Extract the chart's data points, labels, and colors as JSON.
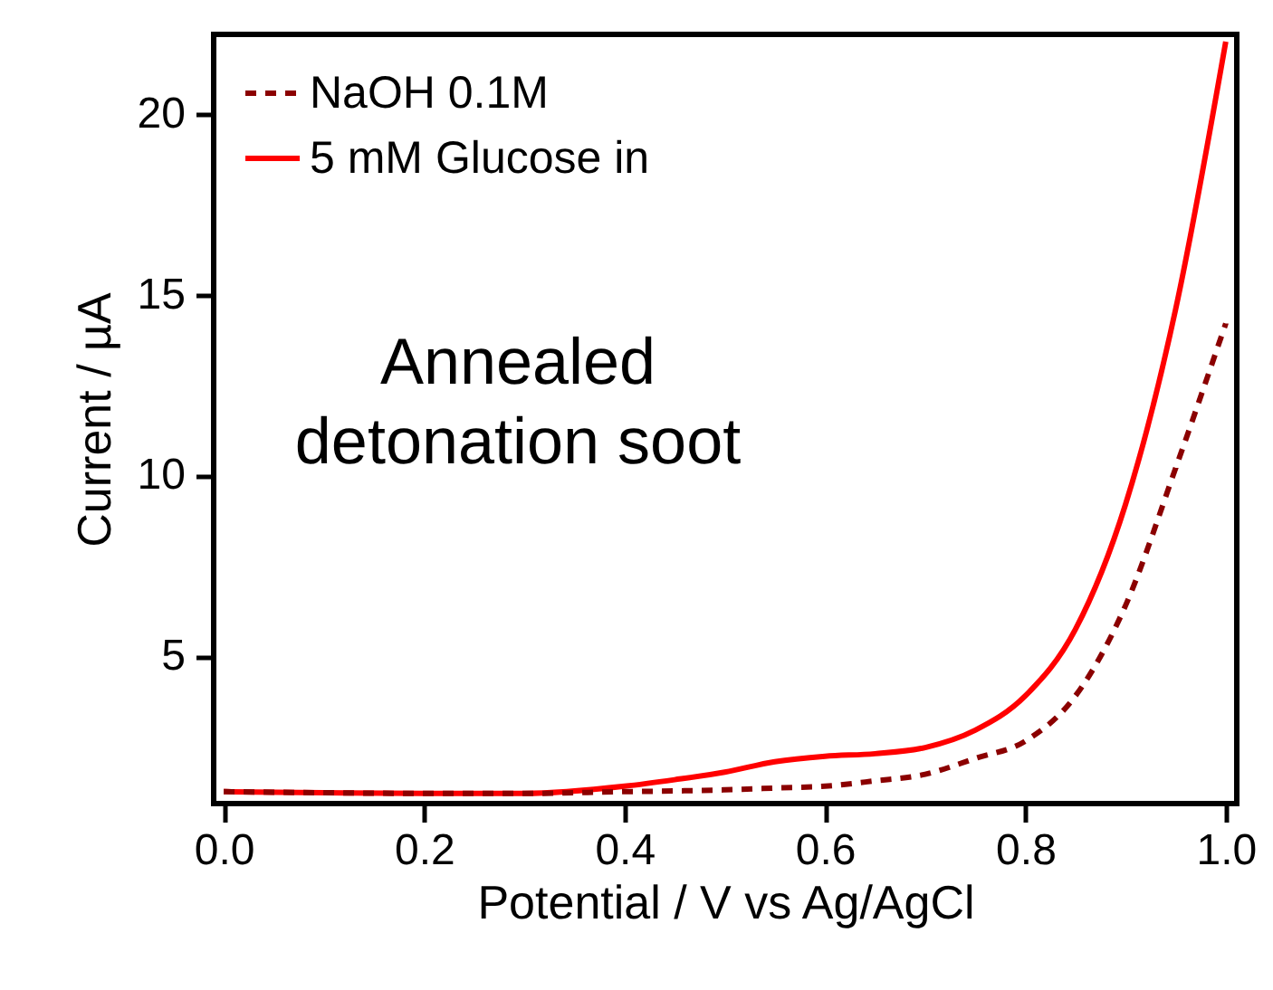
{
  "chart_data": {
    "type": "line",
    "xlabel": "Potential / V vs Ag/AgCl",
    "ylabel": "Current / µA",
    "annotations": [
      "Annealed\ndetonation soot"
    ],
    "xlim": [
      -0.01,
      1.011
    ],
    "ylim": [
      0.92,
      22.2
    ],
    "xticks": [
      {
        "value": 0,
        "label": "0.0"
      },
      {
        "value": 0.2,
        "label": "0.2"
      },
      {
        "value": 0.4,
        "label": "0.4"
      },
      {
        "value": 0.6,
        "label": "0.6"
      },
      {
        "value": 0.8,
        "label": "0.8"
      },
      {
        "value": 1,
        "label": "1.0"
      }
    ],
    "yticks": [
      5,
      10,
      15,
      20
    ],
    "grid": false,
    "legend": "top left",
    "x": [
      0,
      0.1,
      0.2,
      0.3,
      0.4,
      0.45,
      0.5,
      0.55,
      0.6,
      0.65,
      0.7,
      0.75,
      0.8,
      0.85,
      0.9,
      0.95,
      1.0
    ],
    "series": [
      {
        "name": "NaOH 0.1M",
        "color": "#8b0000",
        "line_style": "dashed",
        "values": [
          1.25,
          1.22,
          1.2,
          1.2,
          1.25,
          1.27,
          1.3,
          1.35,
          1.4,
          1.55,
          1.73,
          2.17,
          2.65,
          3.9,
          6.4,
          10.2,
          14.2
        ]
      },
      {
        "name": "5 mM Glucose in",
        "color": "#ff0000",
        "line_style": "solid",
        "values": [
          1.25,
          1.22,
          1.2,
          1.2,
          1.4,
          1.58,
          1.79,
          2.08,
          2.23,
          2.3,
          2.47,
          2.95,
          3.9,
          5.74,
          9.2,
          14.6,
          22.0
        ]
      }
    ]
  }
}
